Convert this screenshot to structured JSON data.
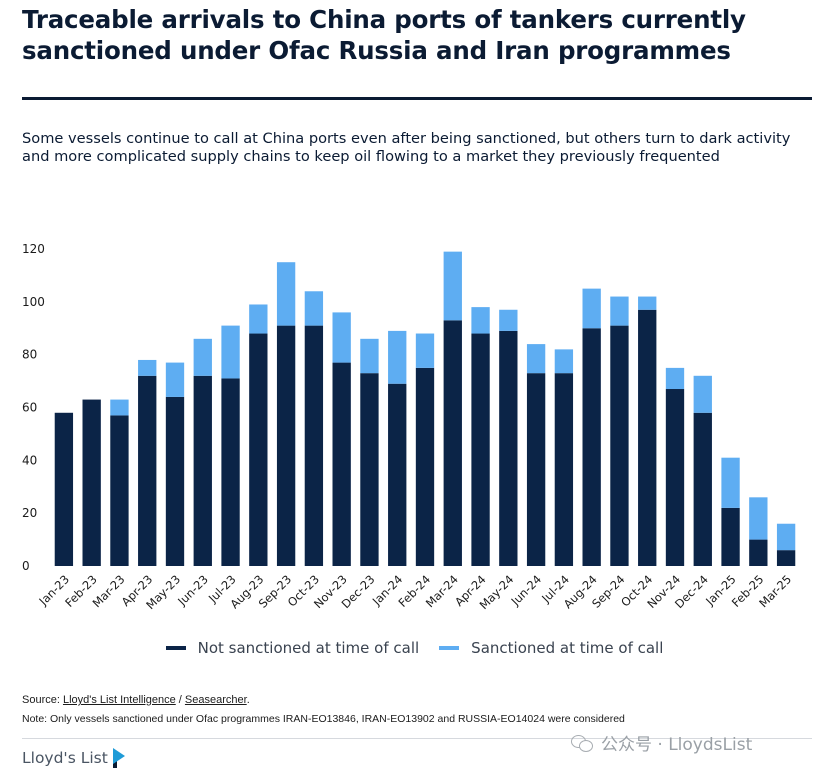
{
  "header": {
    "title": "Traceable arrivals to China ports of tankers currently sanctioned under Ofac Russia and Iran programmes",
    "subtitle": "Some vessels continue to call at China ports even after being sanctioned, but others turn to dark activity and more complicated supply chains to keep oil flowing to a market they previously frequented"
  },
  "chart_data": {
    "type": "bar",
    "stacked": true,
    "categories": [
      "Jan-23",
      "Feb-23",
      "Mar-23",
      "Apr-23",
      "May-23",
      "Jun-23",
      "Jul-23",
      "Aug-23",
      "Sep-23",
      "Oct-23",
      "Nov-23",
      "Dec-23",
      "Jan-24",
      "Feb-24",
      "Mar-24",
      "Apr-24",
      "May-24",
      "Jun-24",
      "Jul-24",
      "Aug-24",
      "Sep-24",
      "Oct-24",
      "Nov-24",
      "Dec-24",
      "Jan-25",
      "Feb-25",
      "Mar-25"
    ],
    "series": [
      {
        "name": "Not sanctioned at time of call",
        "color": "#0b2447",
        "values": [
          58,
          63,
          57,
          72,
          64,
          72,
          71,
          88,
          91,
          91,
          77,
          73,
          69,
          75,
          93,
          88,
          89,
          73,
          73,
          90,
          91,
          97,
          67,
          58,
          22,
          10,
          6
        ]
      },
      {
        "name": "Sanctioned at time of call",
        "color": "#5eadf2",
        "values": [
          0,
          0,
          6,
          6,
          13,
          14,
          20,
          11,
          24,
          13,
          19,
          13,
          20,
          13,
          26,
          10,
          8,
          11,
          9,
          15,
          11,
          5,
          8,
          14,
          19,
          16,
          10
        ]
      }
    ],
    "title": "",
    "xlabel": "",
    "ylabel": "",
    "ylim": [
      0,
      120
    ],
    "yticks": [
      "0",
      "20",
      "40",
      "60",
      "80",
      "100",
      "120"
    ],
    "grid": false,
    "legend_position": "bottom"
  },
  "footer": {
    "source_prefix": "Source: ",
    "source_link1": "Lloyd's List Intelligence",
    "source_sep": " / ",
    "source_link2": "Seasearcher",
    "source_end": ".",
    "note": "Note: Only vessels sanctioned under Ofac programmes IRAN-EO13846, IRAN-EO13902 and RUSSIA-EO14024 were considered",
    "brand": "Lloyd's List",
    "watermark": "公众号 · LloydsList"
  },
  "colors": {
    "not_sanctioned": "#0b2447",
    "sanctioned": "#5eadf2",
    "text_dark": "#0b1b33"
  }
}
